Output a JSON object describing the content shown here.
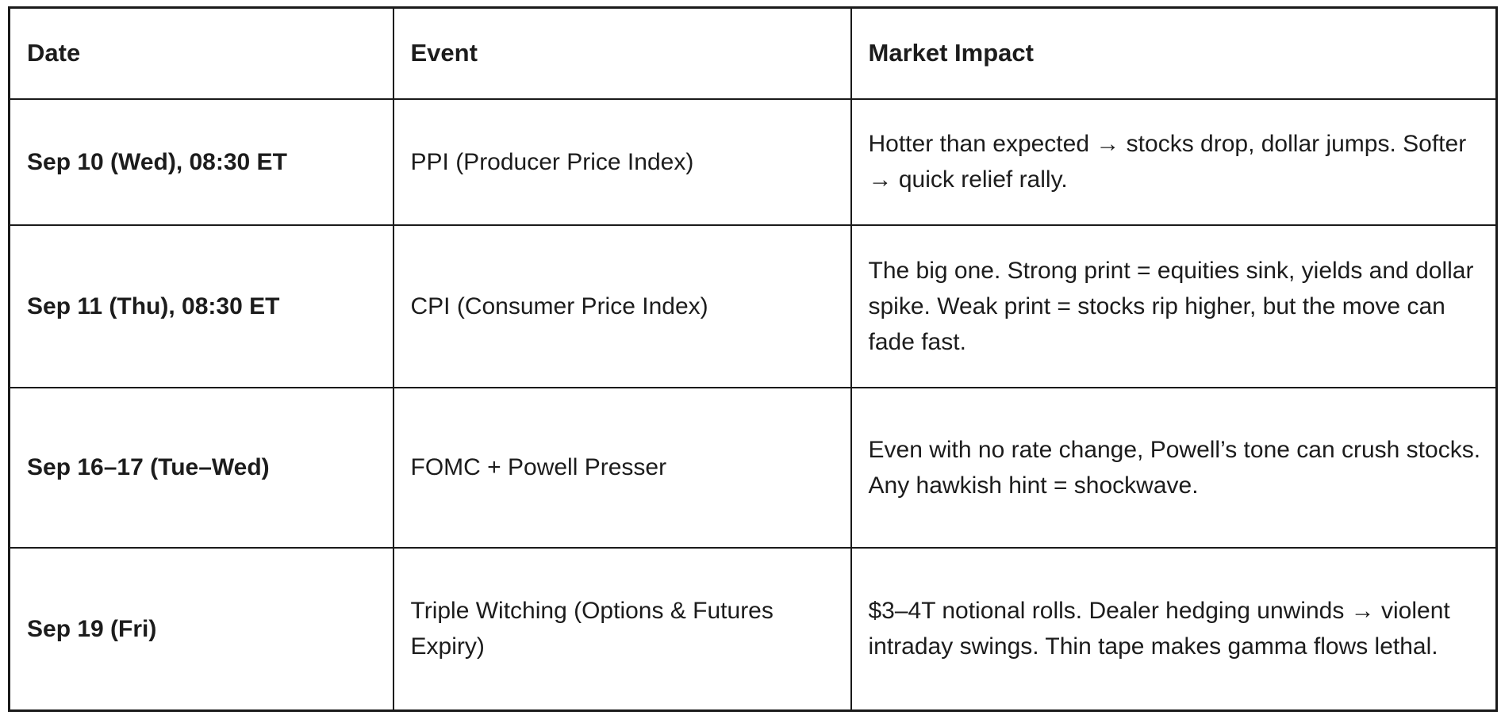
{
  "colors": {
    "border": "#1a1a1a",
    "text": "#1c1c1c",
    "background": "#ffffff"
  },
  "table": {
    "headers": {
      "date": "Date",
      "event": "Event",
      "impact": "Market Impact"
    },
    "rows": [
      {
        "date": "Sep 10 (Wed), 08:30 ET",
        "event": "PPI (Producer Price Index)",
        "impact": "Hotter than expected → stocks drop, dollar jumps. Softer → quick relief rally."
      },
      {
        "date": "Sep 11 (Thu), 08:30 ET",
        "event": "CPI (Consumer Price Index)",
        "impact": "The big one. Strong print = equities sink, yields and dollar spike. Weak print = stocks rip higher, but the move can fade fast."
      },
      {
        "date": "Sep 16–17 (Tue–Wed)",
        "event": "FOMC + Powell Presser",
        "impact": "Even with no rate change, Powell’s tone can crush stocks. Any hawkish hint = shockwave."
      },
      {
        "date": "Sep 19 (Fri)",
        "event": "Triple Witching (Options & Futures Expiry)",
        "impact": "$3–4T notional rolls. Dealer hedging unwinds → violent intraday swings. Thin tape makes gamma flows lethal."
      }
    ]
  }
}
